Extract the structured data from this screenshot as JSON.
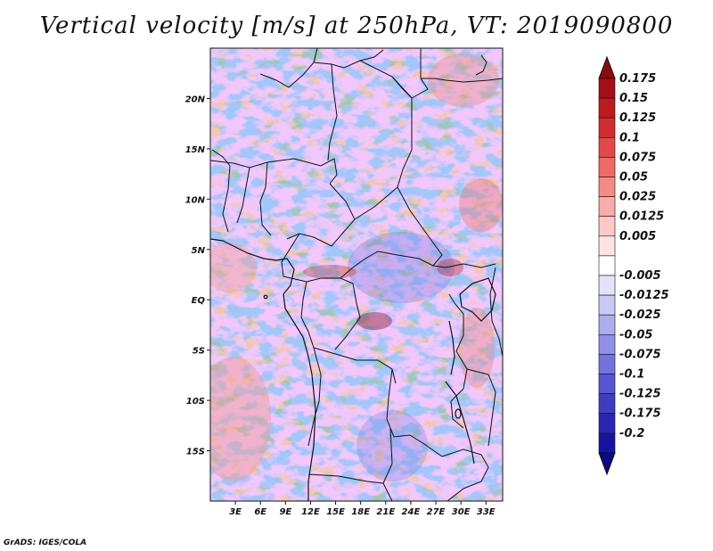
{
  "title": "Vertical velocity [m/s] at 250hPa, VT: 2019090800",
  "credit": "GrADS: IGES/COLA",
  "map": {
    "lon_range": [
      0,
      35
    ],
    "lat_range": [
      -20,
      25
    ],
    "lon_ticks": [
      {
        "lon": 3,
        "label": "3E"
      },
      {
        "lon": 6,
        "label": "6E"
      },
      {
        "lon": 9,
        "label": "9E"
      },
      {
        "lon": 12,
        "label": "12E"
      },
      {
        "lon": 15,
        "label": "15E"
      },
      {
        "lon": 18,
        "label": "18E"
      },
      {
        "lon": 21,
        "label": "21E"
      },
      {
        "lon": 24,
        "label": "24E"
      },
      {
        "lon": 27,
        "label": "27E"
      },
      {
        "lon": 30,
        "label": "30E"
      },
      {
        "lon": 33,
        "label": "33E"
      }
    ],
    "lat_ticks": [
      {
        "lat": 20,
        "label": "20N"
      },
      {
        "lat": 15,
        "label": "15N"
      },
      {
        "lat": 10,
        "label": "10N"
      },
      {
        "lat": 5,
        "label": "5N"
      },
      {
        "lat": 0,
        "label": "EQ"
      },
      {
        "lat": -5,
        "label": "5S"
      },
      {
        "lat": -10,
        "label": "10S"
      },
      {
        "lat": -15,
        "label": "15S"
      }
    ]
  },
  "colorbar": {
    "levels": [
      {
        "label": "0.175",
        "color": "#a50f15"
      },
      {
        "label": "0.15",
        "color": "#bd1a1e"
      },
      {
        "label": "0.125",
        "color": "#d22d2d"
      },
      {
        "label": "0.1",
        "color": "#e34a45"
      },
      {
        "label": "0.075",
        "color": "#ee6a63"
      },
      {
        "label": "0.05",
        "color": "#f58b84"
      },
      {
        "label": "0.025",
        "color": "#f9ada8"
      },
      {
        "label": "0.0125",
        "color": "#fbcac6"
      },
      {
        "label": "0.005",
        "color": "#fde4e2"
      },
      {
        "label": "",
        "color": "#ffffff"
      },
      {
        "label": "-0.005",
        "color": "#e3e3fc"
      },
      {
        "label": "-0.0125",
        "color": "#c9c9f6"
      },
      {
        "label": "-0.025",
        "color": "#adadf0"
      },
      {
        "label": "-0.05",
        "color": "#9090e8"
      },
      {
        "label": "-0.075",
        "color": "#7373de"
      },
      {
        "label": "-0.1",
        "color": "#5656d2"
      },
      {
        "label": "-0.125",
        "color": "#3d3dc4"
      },
      {
        "label": "-0.175",
        "color": "#2727b4"
      },
      {
        "label": "-0.2",
        "color": "#1414a0"
      },
      {
        "label": "",
        "color": "#0a0a82"
      }
    ],
    "top_color": "#8c0a0d"
  }
}
